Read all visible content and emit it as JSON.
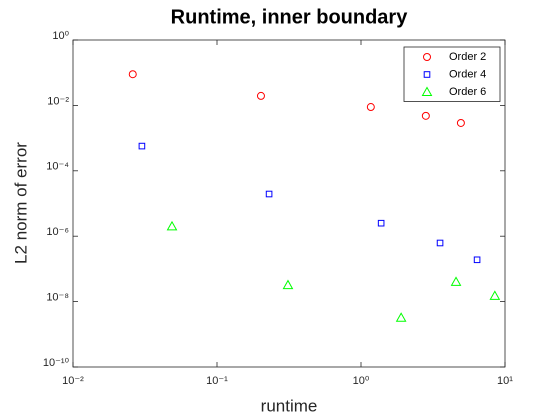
{
  "chart_data": {
    "type": "scatter",
    "title": "Runtime, inner boundary",
    "xlabel": "runtime",
    "ylabel": "L2 norm of error",
    "xscale": "log",
    "yscale": "log",
    "xlim": [
      0.01,
      10
    ],
    "ylim": [
      1e-10,
      1
    ],
    "xticks": [
      {
        "value": 0.01,
        "label": "10⁻²"
      },
      {
        "value": 0.1,
        "label": "10⁻¹"
      },
      {
        "value": 1,
        "label": "10⁰"
      },
      {
        "value": 10,
        "label": "10¹"
      }
    ],
    "yticks": [
      {
        "value": 1e-10,
        "label": "10⁻¹⁰"
      },
      {
        "value": 1e-08,
        "label": "10⁻⁸"
      },
      {
        "value": 1e-06,
        "label": "10⁻⁶"
      },
      {
        "value": 0.0001,
        "label": "10⁻⁴"
      },
      {
        "value": 0.01,
        "label": "10⁻²"
      },
      {
        "value": 1,
        "label": "10⁰"
      }
    ],
    "legend": "upper right",
    "series": [
      {
        "name": "Order 2",
        "color": "#ff0000",
        "marker": "circle",
        "x": [
          0.026,
          0.202,
          1.17,
          2.82,
          4.94
        ],
        "values": [
          0.09,
          0.0195,
          0.0089,
          0.0048,
          0.0029
        ]
      },
      {
        "name": "Order 4",
        "color": "#0000ff",
        "marker": "square",
        "x": [
          0.0301,
          0.23,
          1.38,
          3.54,
          6.4
        ],
        "values": [
          0.00057,
          1.95e-05,
          2.5e-06,
          6.2e-07,
          1.9e-07
        ]
      },
      {
        "name": "Order 6",
        "color": "#00ff00",
        "marker": "triangle",
        "x": [
          0.0487,
          0.311,
          1.9,
          4.57,
          8.5
        ],
        "values": [
          2e-06,
          3.2e-08,
          3.2e-09,
          4e-08,
          1.5e-08
        ]
      }
    ]
  }
}
